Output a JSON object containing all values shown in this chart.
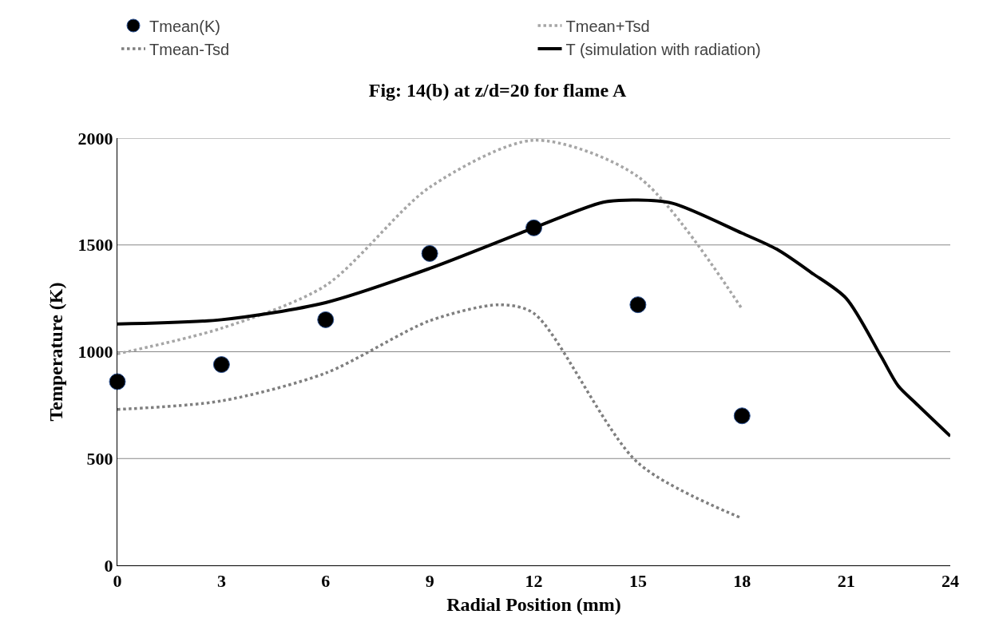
{
  "chart_data": {
    "type": "line",
    "title": "Fig: 14(b) at z/d=20 for flame A",
    "xlabel": "Radial Position (mm)",
    "ylabel": "Temperature (K)",
    "xlim": [
      0,
      24
    ],
    "xticks": [
      0,
      3,
      6,
      9,
      12,
      15,
      18,
      21,
      24
    ],
    "ylim": [
      0,
      2000
    ],
    "yticks": [
      0,
      500,
      1000,
      1500,
      2000
    ],
    "grid": "y",
    "legend": "top",
    "series": [
      {
        "name": "Tmean(K)",
        "type": "scatter",
        "marker": "circle",
        "color": "#000000",
        "x": [
          0,
          3,
          6,
          9,
          12,
          15,
          18
        ],
        "values": [
          860,
          940,
          1150,
          1460,
          1580,
          1220,
          700
        ]
      },
      {
        "name": "Tmean+Tsd",
        "marker": "none",
        "line_style": "dotted",
        "color": "#a6a6a6",
        "x": [
          0,
          3,
          6,
          9,
          12,
          15,
          18
        ],
        "values": [
          990,
          1110,
          1310,
          1770,
          1990,
          1820,
          1200
        ]
      },
      {
        "name": "Tmean-Tsd",
        "marker": "none",
        "line_style": "dotted",
        "color": "#7f7f7f",
        "x": [
          0,
          3,
          6,
          9,
          11,
          12,
          15,
          18
        ],
        "values": [
          730,
          770,
          900,
          1145,
          1220,
          1180,
          480,
          220
        ]
      },
      {
        "name": "T (simulation with radiation)",
        "marker": "none",
        "line_style": "solid",
        "color": "#000000",
        "x": [
          0,
          3,
          6,
          9,
          12,
          14,
          15,
          16,
          18,
          19,
          20,
          21,
          22,
          22.5,
          23,
          24
        ],
        "values": [
          1130,
          1150,
          1230,
          1390,
          1580,
          1700,
          1710,
          1695,
          1555,
          1480,
          1370,
          1250,
          980,
          840,
          760,
          605
        ]
      }
    ]
  }
}
